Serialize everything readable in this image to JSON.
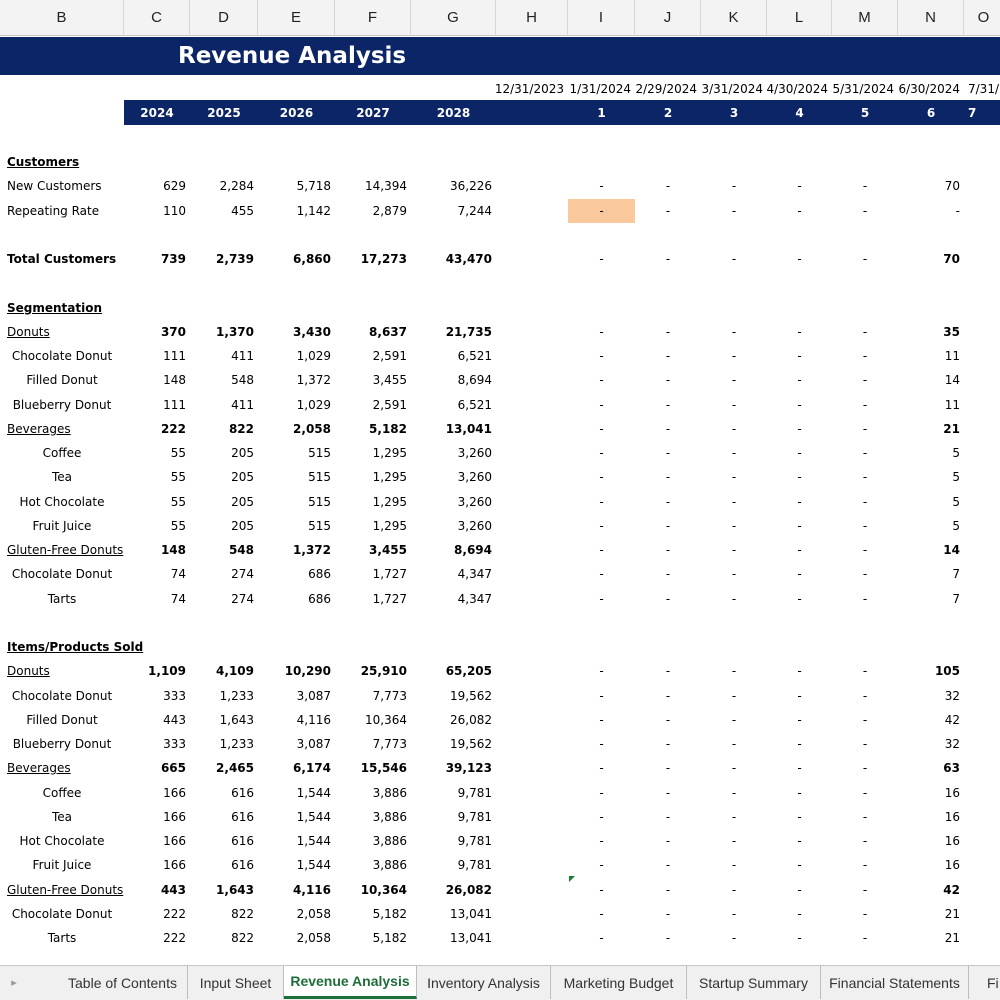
{
  "columns": [
    "B",
    "C",
    "D",
    "E",
    "F",
    "G",
    "H",
    "I",
    "J",
    "K",
    "L",
    "M",
    "N",
    "O"
  ],
  "title": "Revenue Analysis",
  "dates": [
    "12/31/2023",
    "1/31/2024",
    "2/29/2024",
    "3/31/2024",
    "4/30/2024",
    "5/31/2024",
    "6/30/2024",
    "7/31/"
  ],
  "years": [
    "2024",
    "2025",
    "2026",
    "2027",
    "2028"
  ],
  "periods": [
    "1",
    "2",
    "3",
    "4",
    "5",
    "6",
    "7"
  ],
  "rows": [
    {
      "label": "Customers",
      "type": "section"
    },
    {
      "label": "New Customers",
      "type": "data",
      "values": [
        "629",
        "2,284",
        "5,718",
        "14,394",
        "36,226"
      ],
      "monthly": [
        "-",
        "-",
        "-",
        "-",
        "-",
        "70"
      ]
    },
    {
      "label": "Repeating Rate",
      "type": "data",
      "values": [
        "110",
        "455",
        "1,142",
        "2,879",
        "7,244"
      ],
      "monthly": [
        "-",
        "-",
        "-",
        "-",
        "-",
        "-"
      ]
    },
    {
      "label": "",
      "type": "blank"
    },
    {
      "label": "Total Customers",
      "type": "total",
      "values": [
        "739",
        "2,739",
        "6,860",
        "17,273",
        "43,470"
      ],
      "monthly": [
        "-",
        "-",
        "-",
        "-",
        "-",
        "70"
      ]
    },
    {
      "label": "",
      "type": "blank"
    },
    {
      "label": "Segmentation",
      "type": "section"
    },
    {
      "label": "Donuts",
      "type": "group",
      "values": [
        "370",
        "1,370",
        "3,430",
        "8,637",
        "21,735"
      ],
      "monthly": [
        "-",
        "-",
        "-",
        "-",
        "-",
        "35"
      ]
    },
    {
      "label": "Chocolate Donut",
      "type": "item",
      "values": [
        "111",
        "411",
        "1,029",
        "2,591",
        "6,521"
      ],
      "monthly": [
        "-",
        "-",
        "-",
        "-",
        "-",
        "11"
      ]
    },
    {
      "label": "Filled Donut",
      "type": "item",
      "values": [
        "148",
        "548",
        "1,372",
        "3,455",
        "8,694"
      ],
      "monthly": [
        "-",
        "-",
        "-",
        "-",
        "-",
        "14"
      ]
    },
    {
      "label": "Blueberry Donut",
      "type": "item",
      "values": [
        "111",
        "411",
        "1,029",
        "2,591",
        "6,521"
      ],
      "monthly": [
        "-",
        "-",
        "-",
        "-",
        "-",
        "11"
      ]
    },
    {
      "label": "Beverages",
      "type": "group",
      "values": [
        "222",
        "822",
        "2,058",
        "5,182",
        "13,041"
      ],
      "monthly": [
        "-",
        "-",
        "-",
        "-",
        "-",
        "21"
      ]
    },
    {
      "label": "Coffee",
      "type": "item",
      "values": [
        "55",
        "205",
        "515",
        "1,295",
        "3,260"
      ],
      "monthly": [
        "-",
        "-",
        "-",
        "-",
        "-",
        "5"
      ]
    },
    {
      "label": "Tea",
      "type": "item",
      "values": [
        "55",
        "205",
        "515",
        "1,295",
        "3,260"
      ],
      "monthly": [
        "-",
        "-",
        "-",
        "-",
        "-",
        "5"
      ]
    },
    {
      "label": "Hot Chocolate",
      "type": "item",
      "values": [
        "55",
        "205",
        "515",
        "1,295",
        "3,260"
      ],
      "monthly": [
        "-",
        "-",
        "-",
        "-",
        "-",
        "5"
      ]
    },
    {
      "label": "Fruit Juice",
      "type": "item",
      "values": [
        "55",
        "205",
        "515",
        "1,295",
        "3,260"
      ],
      "monthly": [
        "-",
        "-",
        "-",
        "-",
        "-",
        "5"
      ]
    },
    {
      "label": "Gluten-Free Donuts",
      "type": "group",
      "values": [
        "148",
        "548",
        "1,372",
        "3,455",
        "8,694"
      ],
      "monthly": [
        "-",
        "-",
        "-",
        "-",
        "-",
        "14"
      ]
    },
    {
      "label": "Chocolate Donut",
      "type": "item",
      "values": [
        "74",
        "274",
        "686",
        "1,727",
        "4,347"
      ],
      "monthly": [
        "-",
        "-",
        "-",
        "-",
        "-",
        "7"
      ]
    },
    {
      "label": "Tarts",
      "type": "item",
      "values": [
        "74",
        "274",
        "686",
        "1,727",
        "4,347"
      ],
      "monthly": [
        "-",
        "-",
        "-",
        "-",
        "-",
        "7"
      ]
    },
    {
      "label": "",
      "type": "blank"
    },
    {
      "label": "Items/Products Sold",
      "type": "section"
    },
    {
      "label": "Donuts",
      "type": "group",
      "values": [
        "1,109",
        "4,109",
        "10,290",
        "25,910",
        "65,205"
      ],
      "monthly": [
        "-",
        "-",
        "-",
        "-",
        "-",
        "105"
      ]
    },
    {
      "label": "Chocolate Donut",
      "type": "item",
      "values": [
        "333",
        "1,233",
        "3,087",
        "7,773",
        "19,562"
      ],
      "monthly": [
        "-",
        "-",
        "-",
        "-",
        "-",
        "32"
      ]
    },
    {
      "label": "Filled Donut",
      "type": "item",
      "values": [
        "443",
        "1,643",
        "4,116",
        "10,364",
        "26,082"
      ],
      "monthly": [
        "-",
        "-",
        "-",
        "-",
        "-",
        "42"
      ]
    },
    {
      "label": "Blueberry Donut",
      "type": "item",
      "values": [
        "333",
        "1,233",
        "3,087",
        "7,773",
        "19,562"
      ],
      "monthly": [
        "-",
        "-",
        "-",
        "-",
        "-",
        "32"
      ]
    },
    {
      "label": "Beverages",
      "type": "group",
      "values": [
        "665",
        "2,465",
        "6,174",
        "15,546",
        "39,123"
      ],
      "monthly": [
        "-",
        "-",
        "-",
        "-",
        "-",
        "63"
      ]
    },
    {
      "label": "Coffee",
      "type": "item",
      "values": [
        "166",
        "616",
        "1,544",
        "3,886",
        "9,781"
      ],
      "monthly": [
        "-",
        "-",
        "-",
        "-",
        "-",
        "16"
      ]
    },
    {
      "label": "Tea",
      "type": "item",
      "values": [
        "166",
        "616",
        "1,544",
        "3,886",
        "9,781"
      ],
      "monthly": [
        "-",
        "-",
        "-",
        "-",
        "-",
        "16"
      ]
    },
    {
      "label": "Hot Chocolate",
      "type": "item",
      "values": [
        "166",
        "616",
        "1,544",
        "3,886",
        "9,781"
      ],
      "monthly": [
        "-",
        "-",
        "-",
        "-",
        "-",
        "16"
      ]
    },
    {
      "label": "Fruit Juice",
      "type": "item",
      "values": [
        "166",
        "616",
        "1,544",
        "3,886",
        "9,781"
      ],
      "monthly": [
        "-",
        "-",
        "-",
        "-",
        "-",
        "16"
      ]
    },
    {
      "label": "Gluten-Free Donuts",
      "type": "group",
      "values": [
        "443",
        "1,643",
        "4,116",
        "10,364",
        "26,082"
      ],
      "monthly": [
        "-",
        "-",
        "-",
        "-",
        "-",
        "42"
      ]
    },
    {
      "label": "Chocolate Donut",
      "type": "item",
      "values": [
        "222",
        "822",
        "2,058",
        "5,182",
        "13,041"
      ],
      "monthly": [
        "-",
        "-",
        "-",
        "-",
        "-",
        "21"
      ]
    },
    {
      "label": "Tarts",
      "type": "item",
      "values": [
        "222",
        "822",
        "2,058",
        "5,182",
        "13,041"
      ],
      "monthly": [
        "-",
        "-",
        "-",
        "-",
        "-",
        "21"
      ]
    }
  ],
  "highlight_color": "#f9c99d",
  "header_color": "#0b2566",
  "tabs": [
    "Table of Contents",
    "Input Sheet",
    "Revenue Analysis",
    "Inventory Analysis",
    "Marketing Budget",
    "Startup Summary",
    "Financial Statements",
    "Fi"
  ],
  "active_tab": "Revenue Analysis"
}
